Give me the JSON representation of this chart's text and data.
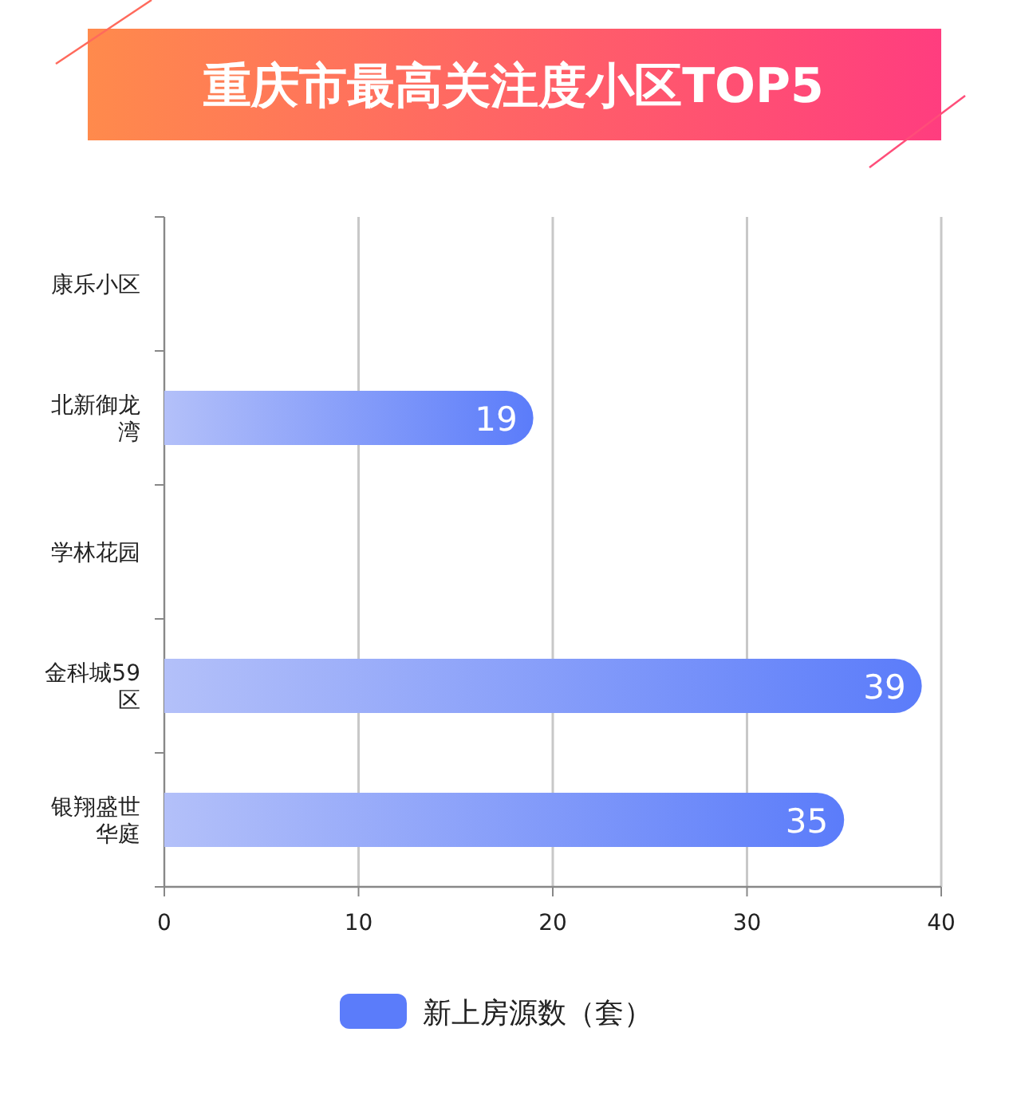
{
  "chart_data": {
    "type": "bar",
    "orientation": "horizontal",
    "title": "重庆市最高关注度小区TOP5",
    "categories": [
      "康乐小区",
      "北新御龙湾",
      "学林花园",
      "金科城59区",
      "银翔盛世华庭"
    ],
    "series": [
      {
        "name": "新上房源数（套）",
        "color": "#5b7cfa",
        "values": [
          null,
          19,
          null,
          39,
          35
        ]
      }
    ],
    "xlim": [
      0,
      40
    ],
    "xticks": [
      0,
      10,
      20,
      30,
      40
    ],
    "grid": "x",
    "legend": "bottom",
    "data_labels": true
  }
}
